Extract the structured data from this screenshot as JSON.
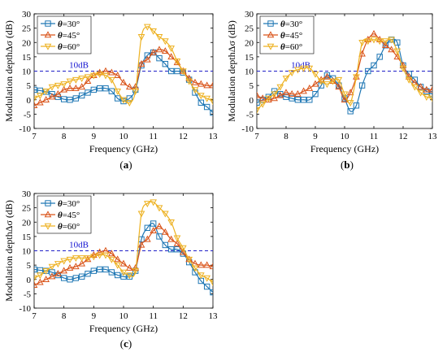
{
  "chart_data": [
    {
      "type": "line",
      "panel": "(a)",
      "xlabel": "Frequency (GHz)",
      "ylabel": "Modulation depthΔσ (dB)",
      "xlim": [
        7,
        13
      ],
      "ylim": [
        -10,
        30
      ],
      "xticks": [
        7,
        8,
        9,
        10,
        11,
        12,
        13
      ],
      "yticks": [
        -10,
        -5,
        0,
        5,
        10,
        15,
        20,
        25,
        30
      ],
      "reference_line": {
        "y": 10,
        "label": "10dB",
        "color": "#2020c8"
      },
      "legend": "top-left",
      "series": [
        {
          "name": "θ=30°",
          "color": "#1f77b4",
          "marker": "square",
          "x": [
            7.0,
            7.2,
            7.4,
            7.6,
            7.8,
            8.0,
            8.2,
            8.4,
            8.6,
            8.8,
            9.0,
            9.2,
            9.4,
            9.6,
            9.8,
            10.0,
            10.2,
            10.4,
            10.6,
            10.8,
            11.0,
            11.2,
            11.4,
            11.6,
            11.8,
            12.0,
            12.2,
            12.4,
            12.6,
            12.8,
            13.0
          ],
          "y": [
            3.5,
            3.2,
            2.8,
            2.0,
            1.0,
            0.2,
            0.0,
            0.5,
            1.5,
            2.5,
            3.5,
            4.0,
            4.0,
            3.0,
            0.5,
            -0.5,
            0.5,
            3.5,
            12.0,
            15.5,
            16.5,
            14.5,
            12.5,
            10.0,
            10.0,
            9.5,
            7.0,
            2.5,
            -1.0,
            -2.5,
            -4.5
          ]
        },
        {
          "name": "θ=45°",
          "color": "#d95319",
          "marker": "triangle-up",
          "x": [
            7.0,
            7.2,
            7.4,
            7.6,
            7.8,
            8.0,
            8.2,
            8.4,
            8.6,
            8.8,
            9.0,
            9.2,
            9.4,
            9.6,
            9.8,
            10.0,
            10.2,
            10.4,
            10.6,
            10.8,
            11.0,
            11.2,
            11.4,
            11.6,
            11.8,
            12.0,
            12.2,
            12.4,
            12.6,
            12.8,
            13.0
          ],
          "y": [
            -2.0,
            -1.0,
            0.0,
            1.0,
            2.0,
            3.5,
            4.0,
            4.0,
            4.5,
            6.5,
            8.5,
            9.5,
            10.0,
            9.5,
            8.5,
            6.0,
            4.5,
            4.5,
            12.5,
            14.0,
            16.5,
            17.5,
            17.0,
            15.0,
            13.0,
            10.0,
            7.5,
            6.0,
            5.5,
            5.0,
            5.0
          ]
        },
        {
          "name": "θ=60°",
          "color": "#edb120",
          "marker": "triangle-down",
          "x": [
            7.0,
            7.2,
            7.4,
            7.6,
            7.8,
            8.0,
            8.2,
            8.4,
            8.6,
            8.8,
            9.0,
            9.2,
            9.4,
            9.6,
            9.8,
            10.0,
            10.2,
            10.4,
            10.6,
            10.8,
            11.0,
            11.2,
            11.4,
            11.6,
            11.8,
            12.0,
            12.2,
            12.4,
            12.6,
            12.8,
            13.0
          ],
          "y": [
            0.5,
            1.5,
            3.0,
            4.5,
            5.0,
            5.5,
            6.5,
            7.0,
            7.5,
            8.0,
            8.5,
            9.0,
            8.5,
            7.0,
            3.0,
            0.0,
            -1.0,
            3.0,
            22.0,
            25.5,
            24.0,
            22.0,
            20.5,
            18.0,
            13.5,
            10.0,
            6.5,
            3.5,
            1.5,
            0.5,
            -0.5
          ]
        }
      ]
    },
    {
      "type": "line",
      "panel": "(b)",
      "xlabel": "Frequency (GHz)",
      "ylabel": "Modulation depthΔσ (dB)",
      "xlim": [
        7,
        13
      ],
      "ylim": [
        -10,
        30
      ],
      "xticks": [
        7,
        8,
        9,
        10,
        11,
        12,
        13
      ],
      "yticks": [
        -10,
        -5,
        0,
        5,
        10,
        15,
        20,
        25,
        30
      ],
      "reference_line": {
        "y": 10,
        "label": "10dB",
        "color": "#2020c8"
      },
      "legend": "top-left",
      "series": [
        {
          "name": "θ=30°",
          "color": "#1f77b4",
          "marker": "square",
          "x": [
            7.0,
            7.2,
            7.4,
            7.6,
            7.8,
            8.0,
            8.2,
            8.4,
            8.6,
            8.8,
            9.0,
            9.2,
            9.4,
            9.6,
            9.8,
            10.0,
            10.2,
            10.4,
            10.6,
            10.8,
            11.0,
            11.2,
            11.4,
            11.6,
            11.8,
            12.0,
            12.2,
            12.4,
            12.6,
            12.8,
            13.0
          ],
          "y": [
            -1.0,
            0.0,
            1.0,
            3.0,
            2.0,
            1.0,
            0.5,
            0.0,
            0.0,
            0.0,
            2.0,
            5.0,
            8.5,
            7.5,
            5.0,
            0.5,
            -4.0,
            -2.0,
            5.0,
            10.0,
            12.0,
            15.0,
            19.0,
            21.0,
            20.0,
            12.0,
            9.0,
            7.0,
            4.5,
            3.0,
            2.0
          ]
        },
        {
          "name": "θ=45°",
          "color": "#d95319",
          "marker": "triangle-up",
          "x": [
            7.0,
            7.2,
            7.4,
            7.6,
            7.8,
            8.0,
            8.2,
            8.4,
            8.6,
            8.8,
            9.0,
            9.2,
            9.4,
            9.6,
            9.8,
            10.0,
            10.2,
            10.4,
            10.6,
            10.8,
            11.0,
            11.2,
            11.4,
            11.6,
            11.8,
            12.0,
            12.2,
            12.4,
            12.6,
            12.8,
            13.0
          ],
          "y": [
            1.5,
            0.5,
            0.0,
            0.5,
            1.5,
            2.5,
            2.0,
            2.0,
            3.0,
            4.0,
            5.5,
            7.0,
            8.0,
            6.5,
            4.5,
            0.0,
            2.5,
            8.0,
            16.0,
            21.0,
            23.0,
            21.0,
            19.0,
            17.5,
            15.0,
            12.0,
            8.0,
            6.0,
            4.5,
            3.5,
            3.5
          ]
        },
        {
          "name": "θ=60°",
          "color": "#edb120",
          "marker": "triangle-down",
          "x": [
            7.0,
            7.2,
            7.4,
            7.6,
            7.8,
            8.0,
            8.2,
            8.4,
            8.6,
            8.8,
            9.0,
            9.2,
            9.4,
            9.6,
            9.8,
            10.0,
            10.2,
            10.4,
            10.6,
            10.8,
            11.0,
            11.2,
            11.4,
            11.6,
            11.8,
            12.0,
            12.2,
            12.4,
            12.6,
            12.8,
            13.0
          ],
          "y": [
            -3.5,
            -1.5,
            0.5,
            2.0,
            4.5,
            7.5,
            9.5,
            10.5,
            11.0,
            11.0,
            9.0,
            6.5,
            5.5,
            6.5,
            7.0,
            2.0,
            -1.0,
            8.0,
            20.0,
            20.5,
            21.0,
            20.5,
            20.5,
            21.0,
            17.0,
            11.0,
            7.0,
            4.5,
            2.5,
            1.0,
            0.5
          ]
        }
      ]
    },
    {
      "type": "line",
      "panel": "(c)",
      "xlabel": "Frequency (GHz)",
      "ylabel": "Modulation depthΔσ (dB)",
      "xlim": [
        7,
        13
      ],
      "ylim": [
        -10,
        30
      ],
      "xticks": [
        7,
        8,
        9,
        10,
        11,
        12,
        13
      ],
      "yticks": [
        -10,
        -5,
        0,
        5,
        10,
        15,
        20,
        25,
        30
      ],
      "reference_line": {
        "y": 10,
        "label": "10dB",
        "color": "#2020c8"
      },
      "legend": "top-left",
      "series": [
        {
          "name": "θ=30°",
          "color": "#1f77b4",
          "marker": "square",
          "x": [
            7.0,
            7.2,
            7.4,
            7.6,
            7.8,
            8.0,
            8.2,
            8.4,
            8.6,
            8.8,
            9.0,
            9.2,
            9.4,
            9.6,
            9.8,
            10.0,
            10.2,
            10.4,
            10.6,
            10.8,
            11.0,
            11.2,
            11.4,
            11.6,
            11.8,
            12.0,
            12.2,
            12.4,
            12.6,
            12.8,
            13.0
          ],
          "y": [
            3.5,
            3.2,
            3.0,
            2.5,
            1.5,
            0.5,
            0.0,
            0.5,
            1.0,
            2.0,
            3.0,
            3.5,
            3.5,
            2.5,
            1.5,
            1.0,
            1.0,
            3.0,
            14.0,
            18.0,
            19.5,
            15.0,
            12.0,
            10.5,
            10.5,
            9.0,
            6.0,
            2.5,
            -0.5,
            -2.5,
            -4.5
          ]
        },
        {
          "name": "θ=45°",
          "color": "#d95319",
          "marker": "triangle-up",
          "x": [
            7.0,
            7.2,
            7.4,
            7.6,
            7.8,
            8.0,
            8.2,
            8.4,
            8.6,
            8.8,
            9.0,
            9.2,
            9.4,
            9.6,
            9.8,
            10.0,
            10.2,
            10.4,
            10.6,
            10.8,
            11.0,
            11.2,
            11.4,
            11.6,
            11.8,
            12.0,
            12.2,
            12.4,
            12.6,
            12.8,
            13.0
          ],
          "y": [
            -2.0,
            -1.0,
            0.0,
            1.0,
            2.0,
            3.0,
            4.0,
            4.5,
            5.5,
            7.0,
            8.5,
            9.5,
            10.0,
            9.0,
            7.0,
            5.5,
            4.0,
            4.0,
            12.0,
            14.0,
            17.0,
            18.5,
            16.5,
            14.0,
            12.5,
            9.5,
            7.0,
            5.5,
            5.0,
            5.0,
            4.5
          ]
        },
        {
          "name": "θ=60°",
          "color": "#edb120",
          "marker": "triangle-down",
          "x": [
            7.0,
            7.2,
            7.4,
            7.6,
            7.8,
            8.0,
            8.2,
            8.4,
            8.6,
            8.8,
            9.0,
            9.2,
            9.4,
            9.6,
            9.8,
            10.0,
            10.2,
            10.4,
            10.6,
            10.8,
            11.0,
            11.2,
            11.4,
            11.6,
            11.8,
            12.0,
            12.2,
            12.4,
            12.6,
            12.8,
            13.0
          ],
          "y": [
            0.5,
            1.5,
            3.0,
            4.5,
            5.5,
            6.5,
            7.0,
            7.5,
            7.5,
            7.5,
            8.0,
            8.5,
            8.5,
            7.0,
            5.0,
            2.5,
            1.5,
            3.0,
            23.0,
            26.5,
            27.0,
            25.0,
            23.0,
            20.0,
            14.5,
            11.0,
            7.0,
            4.0,
            1.5,
            0.5,
            -1.0
          ]
        }
      ]
    }
  ]
}
